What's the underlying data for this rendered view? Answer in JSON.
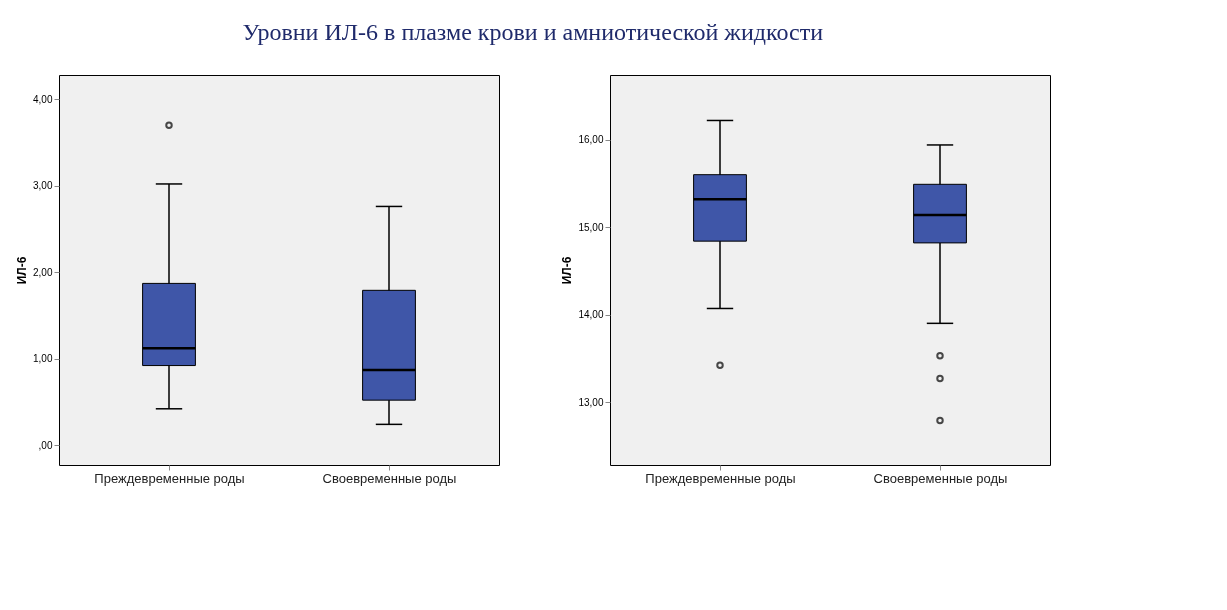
{
  "chart_data": [
    {
      "type": "box",
      "title": "Уровни ИЛ-6 в плазме крови и амниотической жидкости",
      "ylabel": "ИЛ-6",
      "categories": [
        "Преждевременные роды",
        "Своевременные роды"
      ],
      "color": "#3f56a8",
      "boxes": [
        {
          "low": 0.42,
          "q1": 0.92,
          "median": 1.12,
          "q3": 1.87,
          "high": 3.02,
          "outliers": [
            3.7
          ]
        },
        {
          "low": 0.24,
          "q1": 0.52,
          "median": 0.87,
          "q3": 1.79,
          "high": 2.76
        }
      ],
      "ylim": [
        -0.23,
        4.28
      ],
      "yticks": [
        {
          "value": 0,
          "label": ",00"
        },
        {
          "value": 1,
          "label": "1,00"
        },
        {
          "value": 2,
          "label": "2,00"
        },
        {
          "value": 3,
          "label": "3,00"
        },
        {
          "value": 4,
          "label": "4,00"
        }
      ],
      "grid": false
    },
    {
      "type": "box",
      "ylabel": "ИЛ-6",
      "categories": [
        "Преждевременные роды",
        "Своевременные роды"
      ],
      "color": "#3f56a8",
      "boxes": [
        {
          "low": 14.07,
          "q1": 14.84,
          "median": 15.32,
          "q3": 15.6,
          "high": 16.22,
          "outliers": [
            13.42
          ]
        },
        {
          "low": 13.9,
          "q1": 14.82,
          "median": 15.14,
          "q3": 15.49,
          "high": 15.94,
          "outliers": [
            13.53,
            13.27,
            12.79
          ]
        }
      ],
      "ylim": [
        12.28,
        16.74
      ],
      "yticks": [
        {
          "value": 13,
          "label": "13,00"
        },
        {
          "value": 14,
          "label": "14,00"
        },
        {
          "value": 15,
          "label": "15,00"
        },
        {
          "value": 16,
          "label": "16,00"
        }
      ],
      "grid": false
    }
  ]
}
